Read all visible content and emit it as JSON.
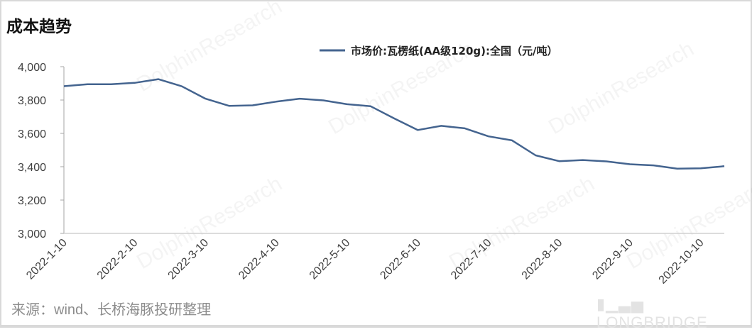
{
  "title": "成本趋势",
  "source": "来源：wind、长桥海豚投研整理",
  "watermark": {
    "brand": "DolphinResearch",
    "logo": "LONGBRIDGE"
  },
  "chart_data": {
    "type": "line",
    "title": "成本趋势",
    "ylim": [
      3000,
      4000
    ],
    "y_ticks": [
      3000,
      3200,
      3400,
      3600,
      3800,
      4000
    ],
    "y_tick_labels": [
      "3,000",
      "3,200",
      "3,400",
      "3,600",
      "3,800",
      "4,000"
    ],
    "x_tick_labels": [
      "2022-1-10",
      "2022-2-10",
      "2022-3-10",
      "2022-4-10",
      "2022-5-10",
      "2022-6-10",
      "2022-7-10",
      "2022-8-10",
      "2022-9-10",
      "2022-10-10"
    ],
    "x_tick_every": 3,
    "grid": false,
    "legend_position": "top-right",
    "series": [
      {
        "name": "市场价:瓦楞纸(AA级120g):全国（元/吨）",
        "color": "#44648f",
        "values": [
          3883,
          3895,
          3895,
          3903,
          3925,
          3882,
          3808,
          3765,
          3768,
          3790,
          3808,
          3798,
          3775,
          3763,
          3690,
          3620,
          3645,
          3630,
          3582,
          3558,
          3468,
          3433,
          3440,
          3432,
          3415,
          3408,
          3388,
          3390,
          3403
        ]
      }
    ]
  }
}
